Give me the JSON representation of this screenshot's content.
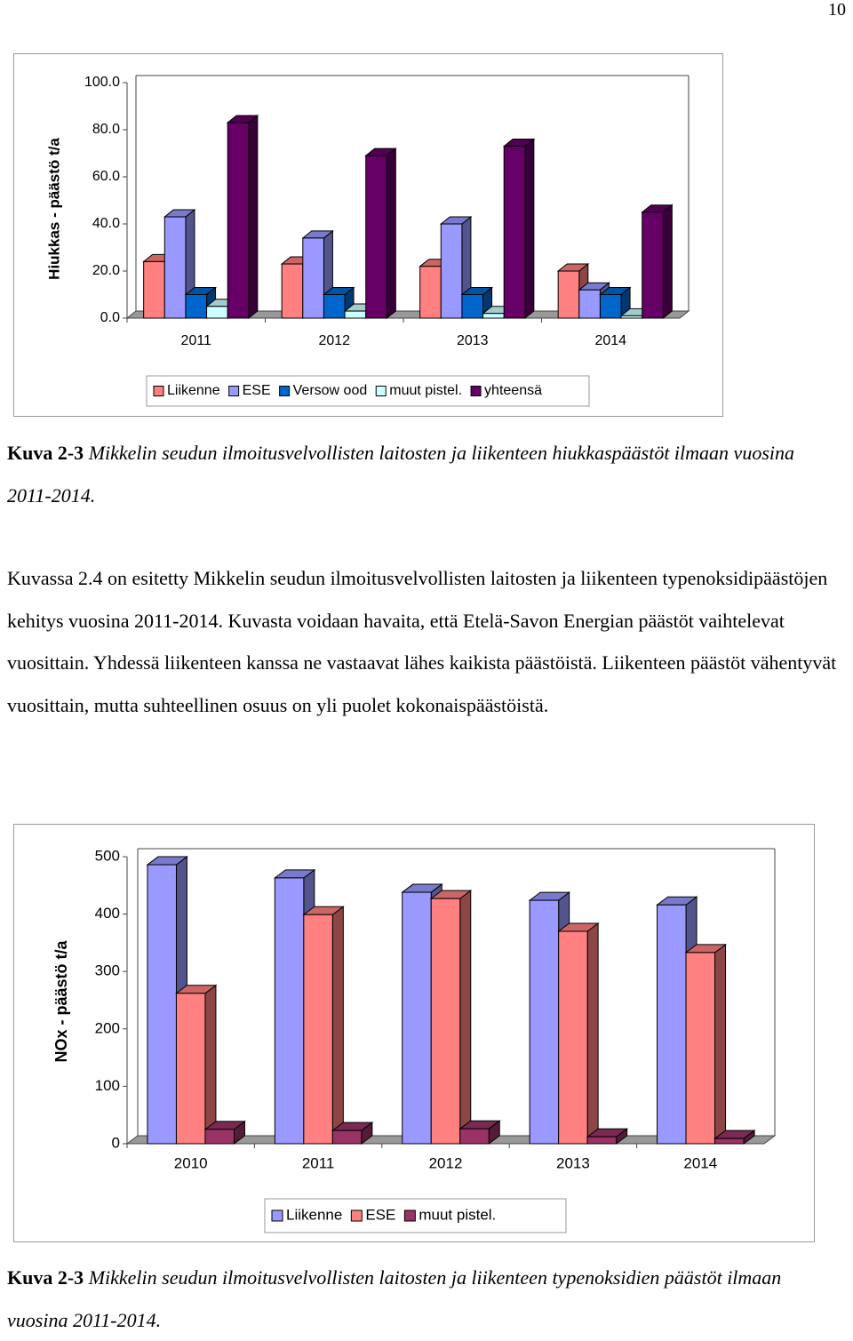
{
  "page_number": "10",
  "chart_data": [
    {
      "type": "bar3d",
      "y_label": "Hiukkas - päästö t/a",
      "categories": [
        "2011",
        "2012",
        "2013",
        "2014"
      ],
      "series": [
        {
          "name": "Liikenne",
          "color": "#ff8080",
          "values": [
            24,
            23,
            22,
            20
          ]
        },
        {
          "name": "ESE",
          "color": "#9999ff",
          "values": [
            43,
            34,
            40,
            12
          ]
        },
        {
          "name": "Versow ood",
          "color": "#0066cc",
          "values": [
            10,
            10,
            10,
            10
          ]
        },
        {
          "name": "muut pistel.",
          "color": "#ccffff",
          "values": [
            5,
            3,
            2,
            1
          ]
        },
        {
          "name": "yhteensä",
          "color": "#660066",
          "values": [
            83,
            69,
            73,
            45
          ]
        }
      ],
      "ylim": [
        0,
        100
      ],
      "yticks": [
        {
          "value": 0,
          "label": "0.0"
        },
        {
          "value": 20,
          "label": "20.0"
        },
        {
          "value": 40,
          "label": "40.0"
        },
        {
          "value": 60,
          "label": "60.0"
        },
        {
          "value": 80,
          "label": "80.0"
        },
        {
          "value": 100,
          "label": "100.0"
        }
      ],
      "legend": "bottom"
    },
    {
      "type": "bar3d",
      "y_label": "NOx - päästö t/a",
      "categories": [
        "2010",
        "2011",
        "2012",
        "2013",
        "2014"
      ],
      "series": [
        {
          "name": "Liikenne",
          "color": "#9999ff",
          "values": [
            486,
            463,
            438,
            424,
            416
          ]
        },
        {
          "name": "ESE",
          "color": "#ff8080",
          "values": [
            262,
            399,
            427,
            370,
            333
          ]
        },
        {
          "name": "muut pistel.",
          "color": "#993366",
          "values": [
            25,
            23,
            26,
            12,
            9
          ]
        }
      ],
      "ylim": [
        0,
        500
      ],
      "yticks": [
        0,
        100,
        200,
        300,
        400,
        500
      ],
      "legend": "bottom"
    }
  ],
  "captions": [
    {
      "label": "Kuva 2-3",
      "text": "Mikkelin seudun ilmoitusvelvollisten laitosten ja liikenteen hiukkaspäästöt ilmaan vuosina 2011-2014."
    },
    {
      "label": "Kuva 2-3",
      "text": "Mikkelin seudun ilmoitusvelvollisten laitosten ja liikenteen typenoksidien päästöt ilmaan vuosina 2011-2014."
    }
  ],
  "paragraph": "Kuvassa 2.4 on esitetty Mikkelin seudun ilmoitusvelvollisten laitosten ja liikenteen typenoksidipäästöjen kehitys vuosina 2011-2014. Kuvasta voidaan havaita, että Etelä-Savon Energian päästöt vaihtelevat vuosittain. Yhdessä liikenteen kanssa ne vastaavat lähes kaikista päästöistä. Liikenteen päästöt vähentyvät vuosittain, mutta suhteellinen osuus on yli puolet kokonaispäästöistä."
}
